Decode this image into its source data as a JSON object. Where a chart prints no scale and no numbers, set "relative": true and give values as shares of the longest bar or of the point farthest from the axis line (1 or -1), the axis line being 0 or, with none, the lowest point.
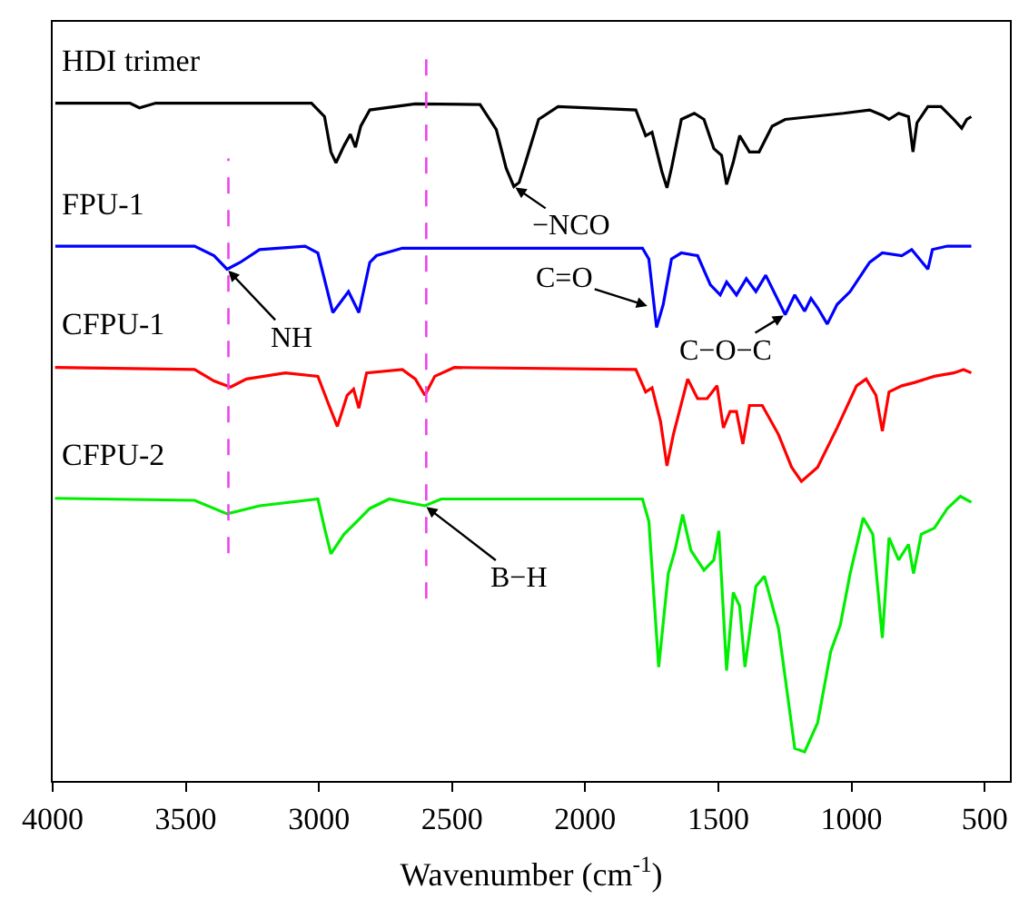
{
  "chart_data": {
    "type": "line",
    "relative": true,
    "xlabel": "Wavenumber (cm$^{-1}$)",
    "xlim": [
      4000,
      405
    ],
    "xticks": [
      4000,
      3500,
      3000,
      2500,
      2000,
      1500,
      1000,
      500
    ],
    "legend": false,
    "marker": "none",
    "line_style": "solid",
    "series": [
      {
        "name": "HDI trimer",
        "color": "#000000",
        "x": [
          3990,
          3710,
          3674,
          3613,
          3028,
          2979,
          2955,
          2936,
          2906,
          2882,
          2863,
          2843,
          2809,
          2638,
          2395,
          2334,
          2297,
          2268,
          2248,
          2224,
          2175,
          2102,
          1810,
          1773,
          1749,
          1712,
          1693,
          1676,
          1639,
          1590,
          1554,
          1517,
          1488,
          1469,
          1444,
          1420,
          1383,
          1347,
          1298,
          1249,
          1030,
          932,
          884,
          859,
          823,
          786,
          769,
          754,
          713,
          664,
          616,
          586,
          567,
          550
        ],
        "values": [
          1.0,
          1.0,
          0.993,
          1.0,
          1.0,
          0.98,
          0.928,
          0.912,
          0.937,
          0.954,
          0.935,
          0.966,
          0.99,
          0.999,
          0.998,
          0.961,
          0.904,
          0.877,
          0.883,
          0.913,
          0.976,
          0.995,
          0.99,
          0.952,
          0.957,
          0.899,
          0.875,
          0.904,
          0.976,
          0.985,
          0.976,
          0.933,
          0.923,
          0.88,
          0.913,
          0.952,
          0.928,
          0.928,
          0.966,
          0.976,
          0.985,
          0.99,
          0.982,
          0.976,
          0.985,
          0.98,
          0.928,
          0.971,
          0.995,
          0.995,
          0.976,
          0.963,
          0.976,
          0.98
        ]
      },
      {
        "name": "FPU-1",
        "color": "#0000ff",
        "x": [
          3990,
          3467,
          3394,
          3345,
          3296,
          3223,
          3052,
          3004,
          2948,
          2889,
          2850,
          2809,
          2784,
          2687,
          1785,
          1761,
          1732,
          1707,
          1676,
          1639,
          1578,
          1530,
          1493,
          1469,
          1432,
          1395,
          1359,
          1322,
          1249,
          1213,
          1176,
          1152,
          1127,
          1091,
          1054,
          1005,
          932,
          884,
          811,
          774,
          713,
          696,
          640,
          550
        ],
        "values": [
          0.789,
          0.789,
          0.775,
          0.755,
          0.765,
          0.784,
          0.789,
          0.779,
          0.691,
          0.722,
          0.691,
          0.765,
          0.775,
          0.786,
          0.786,
          0.77,
          0.669,
          0.703,
          0.77,
          0.779,
          0.775,
          0.732,
          0.717,
          0.736,
          0.717,
          0.741,
          0.722,
          0.746,
          0.688,
          0.717,
          0.693,
          0.712,
          0.698,
          0.674,
          0.703,
          0.722,
          0.765,
          0.779,
          0.775,
          0.784,
          0.755,
          0.784,
          0.789,
          0.789
        ]
      },
      {
        "name": "CFPU-1",
        "color": "#ff0000",
        "x": [
          3991,
          3467,
          3394,
          3333,
          3272,
          3126,
          3004,
          2967,
          2931,
          2894,
          2870,
          2850,
          2821,
          2687,
          2638,
          2602,
          2565,
          2492,
          1810,
          1773,
          1749,
          1717,
          1693,
          1669,
          1615,
          1578,
          1542,
          1505,
          1481,
          1456,
          1432,
          1408,
          1383,
          1335,
          1274,
          1225,
          1188,
          1127,
          1054,
          981,
          945,
          908,
          884,
          859,
          811,
          762,
          689,
          616,
          579,
          550
        ],
        "values": [
          0.61,
          0.607,
          0.59,
          0.581,
          0.593,
          0.602,
          0.597,
          0.559,
          0.523,
          0.569,
          0.578,
          0.55,
          0.602,
          0.607,
          0.593,
          0.569,
          0.597,
          0.61,
          0.607,
          0.574,
          0.58,
          0.53,
          0.465,
          0.511,
          0.593,
          0.564,
          0.564,
          0.583,
          0.521,
          0.545,
          0.545,
          0.497,
          0.554,
          0.554,
          0.511,
          0.463,
          0.442,
          0.463,
          0.521,
          0.583,
          0.593,
          0.569,
          0.516,
          0.574,
          0.583,
          0.588,
          0.597,
          0.602,
          0.607,
          0.602
        ]
      },
      {
        "name": "CFPU-2",
        "color": "#00ee00",
        "x": [
          3991,
          3467,
          3345,
          3223,
          3004,
          2979,
          2955,
          2906,
          2857,
          2809,
          2736,
          2602,
          2541,
          1785,
          1761,
          1724,
          1688,
          1663,
          1634,
          1603,
          1554,
          1517,
          1498,
          1469,
          1444,
          1420,
          1400,
          1359,
          1327,
          1274,
          1213,
          1176,
          1127,
          1078,
          1042,
          1005,
          956,
          920,
          884,
          859,
          823,
          786,
          767,
          738,
          689,
          640,
          591,
          550
        ],
        "values": [
          0.417,
          0.414,
          0.394,
          0.406,
          0.416,
          0.373,
          0.335,
          0.364,
          0.383,
          0.402,
          0.416,
          0.406,
          0.416,
          0.416,
          0.383,
          0.168,
          0.306,
          0.34,
          0.393,
          0.34,
          0.311,
          0.326,
          0.369,
          0.163,
          0.278,
          0.258,
          0.168,
          0.287,
          0.302,
          0.225,
          0.048,
          0.043,
          0.086,
          0.191,
          0.23,
          0.306,
          0.388,
          0.364,
          0.211,
          0.359,
          0.326,
          0.349,
          0.306,
          0.364,
          0.373,
          0.402,
          0.42,
          0.411
        ]
      }
    ],
    "ref_lines": [
      {
        "axis": "x",
        "value": 3340,
        "color": "#ee44ee",
        "line_style": "dashed"
      },
      {
        "axis": "x",
        "value": 2597,
        "color": "#ee44ee",
        "line_style": "dashed"
      }
    ],
    "annotations": [
      {
        "text": "−NCO",
        "x": 2268,
        "y": 0.877
      },
      {
        "text": "NH",
        "x": 3345,
        "y": 0.755
      },
      {
        "text": "C=O",
        "x": 1760,
        "y": 0.7
      },
      {
        "text": "C−O−C",
        "x": 1249,
        "y": 0.688
      },
      {
        "text": "B−H",
        "x": 2602,
        "y": 0.406
      }
    ]
  }
}
